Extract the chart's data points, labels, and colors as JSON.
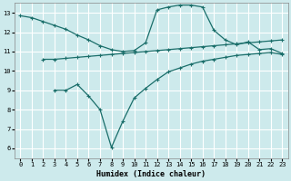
{
  "title": "",
  "xlabel": "Humidex (Indice chaleur)",
  "background_color": "#cdeaec",
  "grid_color": "#ffffff",
  "line_color": "#1a6e6a",
  "xlim": [
    -0.5,
    23.5
  ],
  "ylim": [
    5.5,
    13.5
  ],
  "yticks": [
    6,
    7,
    8,
    9,
    10,
    11,
    12,
    13
  ],
  "xticks": [
    0,
    1,
    2,
    3,
    4,
    5,
    6,
    7,
    8,
    9,
    10,
    11,
    12,
    13,
    14,
    15,
    16,
    17,
    18,
    19,
    20,
    21,
    22,
    23
  ],
  "line1_x": [
    0,
    1,
    2,
    3,
    4,
    5,
    6,
    7,
    8,
    9,
    10,
    11,
    12,
    13,
    14,
    15,
    16,
    17,
    18,
    19,
    20,
    21,
    22,
    23
  ],
  "line1_y": [
    12.85,
    12.75,
    12.55,
    12.35,
    12.15,
    11.85,
    11.6,
    11.3,
    11.1,
    11.0,
    11.05,
    11.45,
    13.15,
    13.3,
    13.4,
    13.4,
    13.3,
    12.1,
    11.6,
    11.35,
    11.5,
    11.1,
    11.15,
    10.9
  ],
  "line2_x": [
    2,
    3,
    4,
    5,
    6,
    7,
    8,
    9,
    10,
    11,
    12,
    13,
    14,
    15,
    16,
    17,
    18,
    19,
    20,
    21,
    22,
    23
  ],
  "line2_y": [
    10.6,
    10.6,
    10.65,
    10.7,
    10.75,
    10.8,
    10.85,
    10.9,
    10.95,
    11.0,
    11.05,
    11.1,
    11.15,
    11.2,
    11.25,
    11.3,
    11.35,
    11.4,
    11.45,
    11.5,
    11.55,
    11.6
  ],
  "line3_x": [
    3,
    4,
    5,
    6,
    7,
    8,
    9,
    10,
    11,
    12,
    13,
    14,
    15,
    16,
    17,
    18,
    19,
    20,
    21,
    22,
    23
  ],
  "line3_y": [
    9.0,
    9.0,
    9.3,
    8.7,
    8.0,
    6.05,
    7.4,
    8.6,
    9.1,
    9.55,
    9.95,
    10.15,
    10.35,
    10.5,
    10.6,
    10.7,
    10.8,
    10.85,
    10.9,
    10.95,
    10.85
  ]
}
